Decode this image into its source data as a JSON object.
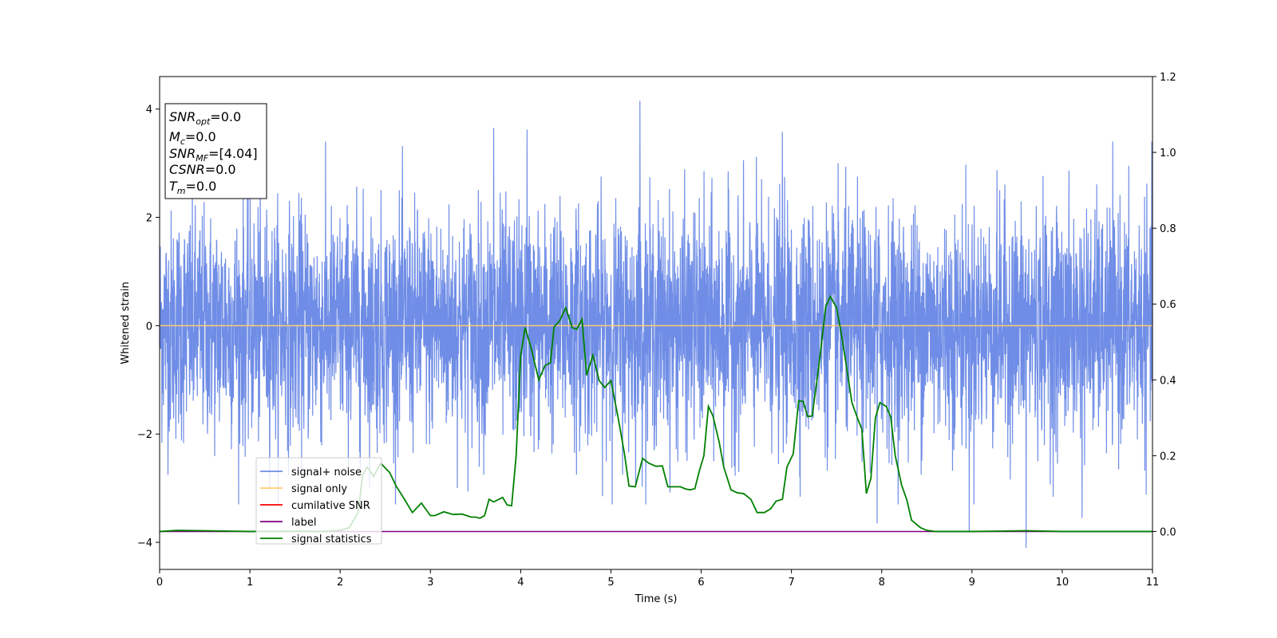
{
  "chart_data": {
    "type": "line",
    "xlabel": "Time (s)",
    "ylabel": "Whitened strain",
    "xlim": [
      0,
      11
    ],
    "ylim_left": [
      -4.5,
      4.6
    ],
    "ylim_right": [
      -0.1,
      1.2
    ],
    "x_ticks": [
      "0",
      "1",
      "2",
      "3",
      "4",
      "5",
      "6",
      "7",
      "8",
      "9",
      "10",
      "11"
    ],
    "y_left_ticks": [
      "−4",
      "−2",
      "0",
      "2",
      "4"
    ],
    "y_right_ticks": [
      "0.0",
      "0.2",
      "0.4",
      "0.6",
      "0.8",
      "1.0",
      "1.2"
    ],
    "grid": false,
    "legend_position": "lower-left",
    "annotation": {
      "snr_opt": {
        "base": "SNR",
        "sub": "opt",
        "value": "=0.0"
      },
      "mc": {
        "base": "M",
        "sub": "c",
        "value": "=0.0"
      },
      "snr_mf": {
        "base": "SNR",
        "sub": "MF",
        "value": "=[4.04]"
      },
      "csnr": {
        "base": "CSNR",
        "value": "=0.0"
      },
      "tm": {
        "base": "T",
        "sub": "m",
        "value": "=0.0"
      }
    },
    "series": [
      {
        "name": "signal+ noise",
        "color": "#6f8de6",
        "axis": "left",
        "description_level": "noise, mean 0, std 1",
        "envelope_typical": [
          -2.4,
          2.4
        ],
        "peaks": [
          {
            "x": 5.32,
            "y": 4.15
          },
          {
            "x": 3.7,
            "y": 3.65
          },
          {
            "x": 4.07,
            "y": 3.62
          },
          {
            "x": 6.9,
            "y": 3.58
          },
          {
            "x": 9.6,
            "y": -4.1
          },
          {
            "x": 8.97,
            "y": -3.8
          },
          {
            "x": 7.95,
            "y": -3.65
          },
          {
            "x": 10.22,
            "y": -3.55
          }
        ]
      },
      {
        "name": "signal only",
        "color": "#ffcc70",
        "axis": "left",
        "x": [
          0,
          11
        ],
        "y": [
          0,
          0
        ]
      },
      {
        "name": "cumilative SNR",
        "color": "#ff0000",
        "axis": "right",
        "x": [
          0,
          11
        ],
        "y": [
          0,
          0
        ]
      },
      {
        "name": "label",
        "color": "#800080",
        "axis": "right",
        "x": [
          0,
          11
        ],
        "y": [
          0,
          0
        ]
      },
      {
        "name": "signal statistics",
        "color": "#008000",
        "axis": "right",
        "x": [
          0,
          0.2,
          0.5,
          1.0,
          1.5,
          1.8,
          2.0,
          2.1,
          2.2,
          2.25,
          2.3,
          2.37,
          2.45,
          2.55,
          2.62,
          2.7,
          2.75,
          2.8,
          2.9,
          3.0,
          3.05,
          3.15,
          3.25,
          3.35,
          3.45,
          3.5,
          3.55,
          3.6,
          3.65,
          3.7,
          3.8,
          3.85,
          3.9,
          3.95,
          4.0,
          4.05,
          4.12,
          4.2,
          4.27,
          4.33,
          4.37,
          4.43,
          4.5,
          4.57,
          4.62,
          4.68,
          4.73,
          4.8,
          4.87,
          4.93,
          5.0,
          5.08,
          5.15,
          5.2,
          5.27,
          5.35,
          5.42,
          5.5,
          5.57,
          5.63,
          5.7,
          5.77,
          5.83,
          5.88,
          5.93,
          5.98,
          6.03,
          6.08,
          6.13,
          6.2,
          6.25,
          6.33,
          6.4,
          6.47,
          6.55,
          6.62,
          6.7,
          6.77,
          6.83,
          6.9,
          6.95,
          7.02,
          7.08,
          7.13,
          7.18,
          7.23,
          7.3,
          7.38,
          7.43,
          7.5,
          7.55,
          7.6,
          7.67,
          7.73,
          7.78,
          7.83,
          7.88,
          7.93,
          7.98,
          8.05,
          8.1,
          8.15,
          8.22,
          8.28,
          8.33,
          8.38,
          8.43,
          8.5,
          8.6,
          8.8,
          9.0,
          9.3,
          9.6,
          10.0,
          10.5,
          11.0
        ],
        "y": [
          0.0,
          0.003,
          0.002,
          0.0,
          0.001,
          0.0,
          0.003,
          0.01,
          0.05,
          0.15,
          0.17,
          0.145,
          0.18,
          0.155,
          0.12,
          0.09,
          0.07,
          0.05,
          0.075,
          0.042,
          0.042,
          0.052,
          0.045,
          0.046,
          0.038,
          0.038,
          0.035,
          0.042,
          0.085,
          0.078,
          0.09,
          0.07,
          0.068,
          0.2,
          0.465,
          0.538,
          0.48,
          0.4,
          0.438,
          0.445,
          0.54,
          0.555,
          0.59,
          0.538,
          0.533,
          0.56,
          0.412,
          0.465,
          0.398,
          0.38,
          0.398,
          0.3,
          0.205,
          0.12,
          0.118,
          0.193,
          0.18,
          0.172,
          0.173,
          0.118,
          0.118,
          0.118,
          0.112,
          0.11,
          0.113,
          0.16,
          0.2,
          0.33,
          0.305,
          0.235,
          0.17,
          0.11,
          0.102,
          0.1,
          0.085,
          0.05,
          0.05,
          0.06,
          0.08,
          0.085,
          0.17,
          0.205,
          0.345,
          0.343,
          0.303,
          0.305,
          0.43,
          0.593,
          0.62,
          0.59,
          0.525,
          0.45,
          0.34,
          0.3,
          0.27,
          0.1,
          0.14,
          0.3,
          0.34,
          0.33,
          0.302,
          0.2,
          0.123,
          0.082,
          0.03,
          0.02,
          0.01,
          0.003,
          0.0,
          0.0,
          0.0,
          0.001,
          0.002,
          0.0,
          0.0,
          0.0
        ]
      }
    ]
  }
}
